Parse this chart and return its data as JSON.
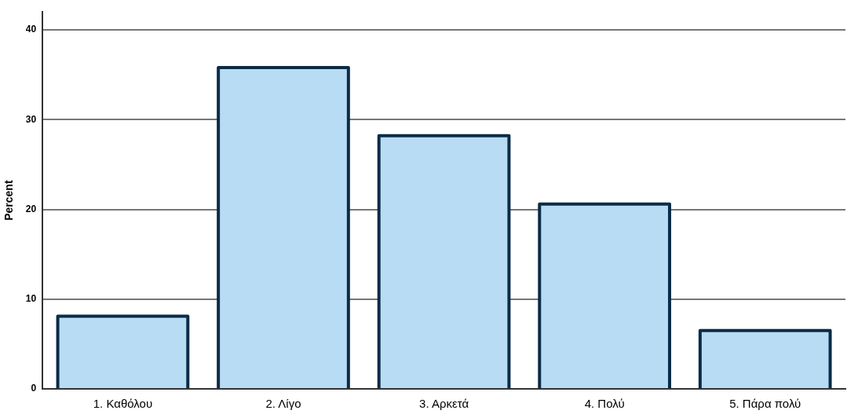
{
  "chart_data": {
    "type": "bar",
    "ylabel": "Percent",
    "categories": [
      "1. Καθόλου",
      "2. Λίγο",
      "3. Αρκετά",
      "4. Πολύ",
      "5. Πάρα πολύ"
    ],
    "values": [
      8.1,
      35.8,
      28.2,
      20.6,
      6.5
    ],
    "color": "#b9dcf5",
    "ylim": [
      0,
      42
    ],
    "yticks": [
      0,
      10,
      20,
      30,
      40
    ],
    "grid": "y"
  }
}
